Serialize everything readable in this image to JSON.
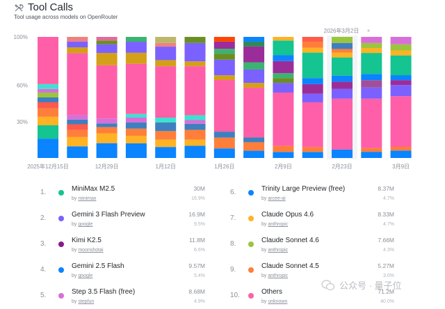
{
  "header": {
    "icon": "tools-icon",
    "title": "Tool Calls",
    "subtitle": "Tool usage across models on OpenRouter"
  },
  "chart_data": {
    "type": "bar",
    "stacked": true,
    "normalized": true,
    "title": "Tool Calls",
    "subtitle": "Tool usage across models on OpenRouter",
    "xlabel": "",
    "ylabel": "",
    "ylim": [
      0,
      100
    ],
    "yticks": [
      "100%",
      "60%",
      "30%"
    ],
    "ytick_values": [
      100,
      60,
      30
    ],
    "grid": false,
    "hover_tooltip": "2026年3月2日",
    "hover_index": 10,
    "x_tick_labels": [
      {
        "index": 0,
        "label": "2025年12月15日"
      },
      {
        "index": 2,
        "label": "12月29日"
      },
      {
        "index": 4,
        "label": "1月12日"
      },
      {
        "index": 6,
        "label": "1月26日"
      },
      {
        "index": 8,
        "label": "2月9日"
      },
      {
        "index": 10,
        "label": "2月23日"
      },
      {
        "index": 12,
        "label": "3月9日"
      }
    ],
    "bars": [
      {
        "segments": [
          [
            "#0a84ff",
            16
          ],
          [
            "#14c491",
            11
          ],
          [
            "#ffb224",
            7
          ],
          [
            "#ff7f3a",
            7
          ],
          [
            "#ff5a4a",
            5
          ],
          [
            "#3f7fbf",
            4
          ],
          [
            "#9bc53d",
            4
          ],
          [
            "#d86fd8",
            3
          ],
          [
            "#40e0d0",
            4
          ],
          [
            "#ff5fa8",
            39
          ]
        ]
      },
      {
        "segments": [
          [
            "#0a84ff",
            10
          ],
          [
            "#ffb224",
            8
          ],
          [
            "#ff7f3a",
            6
          ],
          [
            "#ff5a4a",
            5
          ],
          [
            "#3f7fbf",
            4
          ],
          [
            "#d86fd8",
            4
          ],
          [
            "#ff5fa8",
            53
          ],
          [
            "#d4a017",
            5
          ],
          [
            "#7b61ff",
            5
          ],
          [
            "#f08080",
            4
          ]
        ]
      },
      {
        "segments": [
          [
            "#0a84ff",
            12
          ],
          [
            "#ffb224",
            8
          ],
          [
            "#ff7f3a",
            5
          ],
          [
            "#3f7fbf",
            3
          ],
          [
            "#d86fd8",
            4
          ],
          [
            "#ff5fa8",
            43
          ],
          [
            "#d4a017",
            10
          ],
          [
            "#7b61ff",
            7
          ],
          [
            "#6b8e23",
            3
          ],
          [
            "#e06c9a",
            3
          ]
        ]
      },
      {
        "segments": [
          [
            "#0a84ff",
            12
          ],
          [
            "#ffb224",
            6
          ],
          [
            "#ff7f3a",
            6
          ],
          [
            "#3f7fbf",
            5
          ],
          [
            "#d86fd8",
            4
          ],
          [
            "#40e0d0",
            3
          ],
          [
            "#ff5fa8",
            41
          ],
          [
            "#d4a017",
            9
          ],
          [
            "#7b61ff",
            9
          ],
          [
            "#3cb371",
            4
          ]
        ]
      },
      {
        "segments": [
          [
            "#0a84ff",
            9
          ],
          [
            "#ffb224",
            6
          ],
          [
            "#ff7f3a",
            7
          ],
          [
            "#3f7fbf",
            7
          ],
          [
            "#40e0d0",
            4
          ],
          [
            "#ff5fa8",
            42
          ],
          [
            "#d4a017",
            5
          ],
          [
            "#7b61ff",
            11
          ],
          [
            "#f08080",
            3
          ],
          [
            "#bdb76b",
            5
          ]
        ]
      },
      {
        "segments": [
          [
            "#0a84ff",
            10
          ],
          [
            "#ffb224",
            5
          ],
          [
            "#ff7f3a",
            8
          ],
          [
            "#3f7fbf",
            5
          ],
          [
            "#d86fd8",
            3
          ],
          [
            "#40e0d0",
            4
          ],
          [
            "#ff5fa8",
            40
          ],
          [
            "#d4a017",
            4
          ],
          [
            "#7b61ff",
            15
          ],
          [
            "#6b8e23",
            5
          ]
        ]
      },
      {
        "segments": [
          [
            "#0a84ff",
            8
          ],
          [
            "#ff7f3a",
            9
          ],
          [
            "#3f7fbf",
            5
          ],
          [
            "#ff5fa8",
            43
          ],
          [
            "#d4a017",
            4
          ],
          [
            "#7b61ff",
            13
          ],
          [
            "#6b8e23",
            5
          ],
          [
            "#3cb371",
            4
          ],
          [
            "#9b2d9b",
            6
          ],
          [
            "#ff4500",
            4
          ]
        ]
      },
      {
        "segments": [
          [
            "#0a84ff",
            6
          ],
          [
            "#ff7f3a",
            7
          ],
          [
            "#3f7fbf",
            4
          ],
          [
            "#ff5fa8",
            41
          ],
          [
            "#d4a017",
            4
          ],
          [
            "#7b61ff",
            11
          ],
          [
            "#3cb371",
            6
          ],
          [
            "#9b2d9b",
            13
          ],
          [
            "#2e8b57",
            4
          ],
          [
            "#0a84ff",
            4
          ]
        ]
      },
      {
        "segments": [
          [
            "#0a84ff",
            5
          ],
          [
            "#ff7f3a",
            5
          ],
          [
            "#ff5fa8",
            44
          ],
          [
            "#7b61ff",
            8
          ],
          [
            "#6b8e23",
            4
          ],
          [
            "#3cb371",
            4
          ],
          [
            "#9b2d9b",
            10
          ],
          [
            "#0a84ff",
            5
          ],
          [
            "#14c491",
            12
          ],
          [
            "#ffb224",
            3
          ]
        ]
      },
      {
        "segments": [
          [
            "#0a84ff",
            5
          ],
          [
            "#ff7f3a",
            4
          ],
          [
            "#ff5fa8",
            37
          ],
          [
            "#7b61ff",
            7
          ],
          [
            "#9b2d9b",
            8
          ],
          [
            "#0a84ff",
            5
          ],
          [
            "#14c491",
            21
          ],
          [
            "#ffb224",
            4
          ],
          [
            "#ff7f3a",
            5
          ],
          [
            "#ff5a4a",
            4
          ]
        ]
      },
      {
        "segments": [
          [
            "#0a84ff",
            7
          ],
          [
            "#ff5fa8",
            42
          ],
          [
            "#7b61ff",
            8
          ],
          [
            "#9b2d9b",
            6
          ],
          [
            "#0a84ff",
            5
          ],
          [
            "#14c491",
            15
          ],
          [
            "#ffb224",
            4
          ],
          [
            "#ff7f3a",
            3
          ],
          [
            "#3f7fbf",
            5
          ],
          [
            "#9bc53d",
            5
          ]
        ]
      },
      {
        "segments": [
          [
            "#0a84ff",
            5
          ],
          [
            "#ff7f3a",
            3
          ],
          [
            "#ff5fa8",
            40
          ],
          [
            "#7b61ff",
            9
          ],
          [
            "#a0509a",
            6
          ],
          [
            "#0a84ff",
            5
          ],
          [
            "#14c491",
            17
          ],
          [
            "#ffb224",
            4
          ],
          [
            "#9bc53d",
            4
          ],
          [
            "#d86fd8",
            5
          ]
        ]
      },
      {
        "segments": [
          [
            "#0a84ff",
            6
          ],
          [
            "#ff7f3a",
            3
          ],
          [
            "#ff5fa8",
            41
          ],
          [
            "#7b61ff",
            9
          ],
          [
            "#9b2d9b",
            4
          ],
          [
            "#0a84ff",
            4
          ],
          [
            "#14c491",
            16
          ],
          [
            "#ffb224",
            4
          ],
          [
            "#9bc53d",
            5
          ],
          [
            "#d86fd8",
            6
          ]
        ]
      }
    ],
    "legend": [
      {
        "rank": "1.",
        "name": "MiniMax M2.5",
        "by": "minimax",
        "value": "30M",
        "percent": "16.9%",
        "color": "#14c491"
      },
      {
        "rank": "2.",
        "name": "Gemini 3 Flash Preview",
        "by": "google",
        "value": "16.9M",
        "percent": "9.5%",
        "color": "#7b61ff"
      },
      {
        "rank": "3.",
        "name": "Kimi K2.5",
        "by": "moonshotai",
        "value": "11.8M",
        "percent": "6.6%",
        "color": "#8b1a8b"
      },
      {
        "rank": "4.",
        "name": "Gemini 2.5 Flash",
        "by": "google",
        "value": "9.57M",
        "percent": "5.4%",
        "color": "#0a84ff"
      },
      {
        "rank": "5.",
        "name": "Step 3.5 Flash (free)",
        "by": "stepfun",
        "value": "8.68M",
        "percent": "4.9%",
        "color": "#d86fd8"
      },
      {
        "rank": "6.",
        "name": "Trinity Large Preview (free)",
        "by": "arcee-ai",
        "value": "8.37M",
        "percent": "4.7%",
        "color": "#0a84ff"
      },
      {
        "rank": "7.",
        "name": "Claude Opus 4.6",
        "by": "anthropic",
        "value": "8.33M",
        "percent": "4.7%",
        "color": "#ffb224"
      },
      {
        "rank": "8.",
        "name": "Claude Sonnet 4.6",
        "by": "anthropic",
        "value": "7.66M",
        "percent": "4.3%",
        "color": "#9bc53d"
      },
      {
        "rank": "9.",
        "name": "Claude Sonnet 4.5",
        "by": "anthropic",
        "value": "5.27M",
        "percent": "3.0%",
        "color": "#ff7f3a"
      },
      {
        "rank": "10.",
        "name": "Others",
        "by": "unknown",
        "value": "71.2M",
        "percent": "40.0%",
        "color": "#ff5fa8"
      }
    ]
  },
  "labels": {
    "by_prefix": "by "
  },
  "watermark": {
    "text": "公众号 · 量子位",
    "icon": "wechat-icon"
  }
}
